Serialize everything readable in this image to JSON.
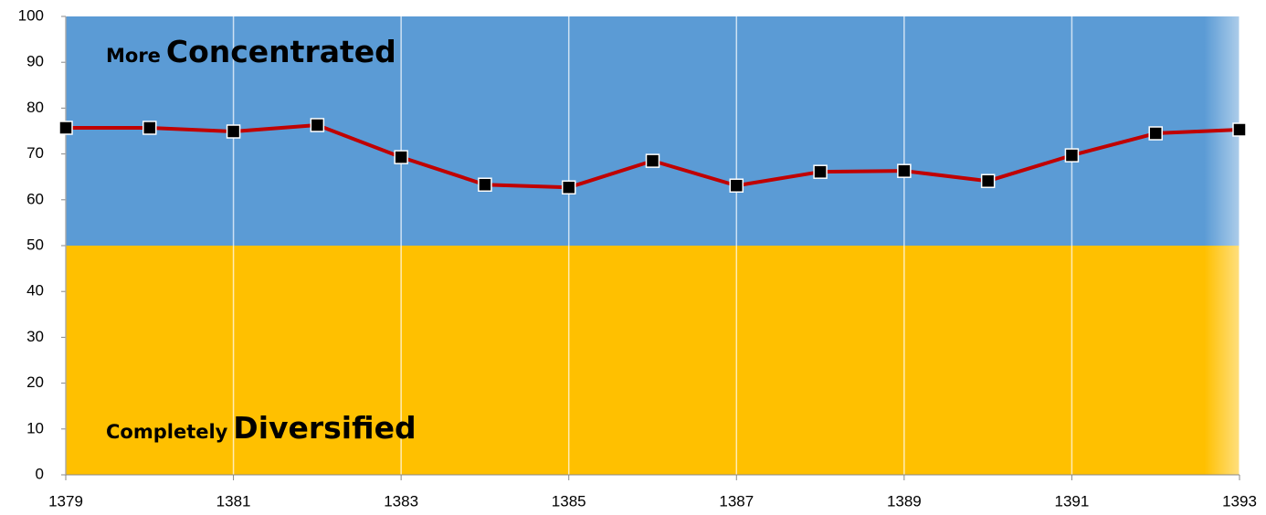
{
  "chart_data": {
    "type": "line",
    "x": [
      1379,
      1380,
      1381,
      1382,
      1383,
      1384,
      1385,
      1386,
      1387,
      1388,
      1389,
      1390,
      1391,
      1392,
      1393
    ],
    "series": [
      {
        "color": "#c00000",
        "values": [
          75.7,
          75.7,
          74.9,
          76.3,
          69.3,
          63.3,
          62.7,
          68.5,
          63.1,
          66.1,
          66.3,
          64.1,
          69.7,
          74.5,
          75.3
        ]
      }
    ],
    "xlim": [
      1379,
      1393
    ],
    "xticks": [
      1379,
      1381,
      1383,
      1385,
      1387,
      1389,
      1391,
      1393
    ],
    "ylim": [
      0,
      100
    ],
    "yticks": [
      0,
      10,
      20,
      30,
      40,
      50,
      60,
      70,
      80,
      90,
      100
    ],
    "bands": [
      {
        "from": 50,
        "to": 100,
        "color": "#5b9bd5"
      },
      {
        "from": 0,
        "to": 50,
        "color": "#ffc000"
      }
    ],
    "annotations": [
      "More",
      "Concentrated",
      "Completely",
      "Diversified"
    ],
    "marker_color": "#000000"
  }
}
